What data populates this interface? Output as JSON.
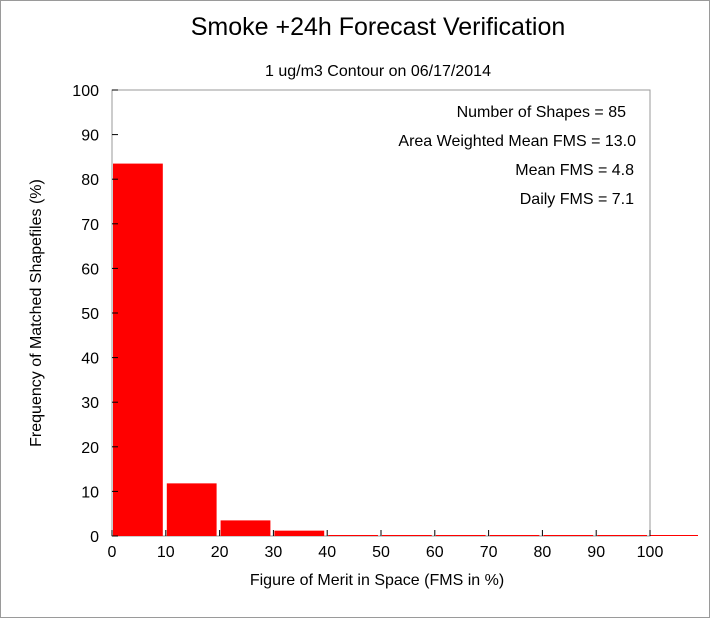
{
  "chart_data": {
    "type": "bar",
    "title": "Smoke +24h Forecast Verification",
    "subtitle": "1 ug/m3 Contour on 06/17/2014",
    "xlabel": "Figure of Merit in Space (FMS in %)",
    "ylabel": "Frequency of Matched Shapefiles (%)",
    "xlim": [
      0,
      100
    ],
    "ylim": [
      0,
      100
    ],
    "xticks": [
      "0",
      "10",
      "20",
      "30",
      "40",
      "50",
      "60",
      "70",
      "80",
      "90",
      "100"
    ],
    "yticks": [
      "0",
      "10",
      "20",
      "30",
      "40",
      "50",
      "60",
      "70",
      "80",
      "90",
      "100"
    ],
    "bins": [
      [
        0,
        10
      ],
      [
        10,
        20
      ],
      [
        20,
        30
      ],
      [
        30,
        40
      ],
      [
        40,
        50
      ],
      [
        50,
        60
      ],
      [
        60,
        70
      ],
      [
        70,
        80
      ],
      [
        80,
        90
      ],
      [
        90,
        100
      ]
    ],
    "values": [
      83.5,
      11.8,
      3.5,
      1.2,
      0,
      0,
      0,
      0,
      0,
      0
    ],
    "bar_color": "#ff0000",
    "annotations": [
      "Number of Shapes = 85",
      "Area Weighted Mean FMS = 13.0",
      "Mean FMS = 4.8",
      "Daily FMS = 7.1"
    ]
  }
}
